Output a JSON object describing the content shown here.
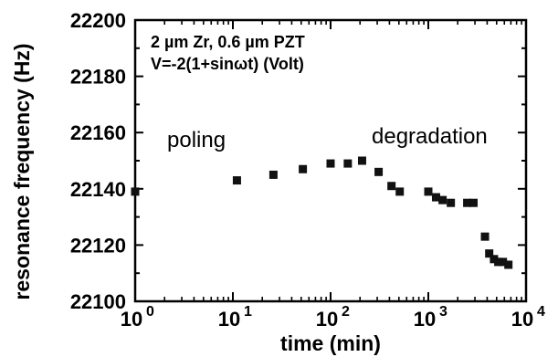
{
  "chart_data": {
    "type": "scatter",
    "xscale": "log",
    "xlim": [
      1,
      10000
    ],
    "ylim": [
      22100,
      22200
    ],
    "xlabel": "time (min)",
    "ylabel": "resonance frequency (Hz)",
    "x_ticks": [
      {
        "value": 1,
        "base": "10",
        "exp": "0"
      },
      {
        "value": 10,
        "base": "10",
        "exp": "1"
      },
      {
        "value": 100,
        "base": "10",
        "exp": "2"
      },
      {
        "value": 1000,
        "base": "10",
        "exp": "3"
      },
      {
        "value": 10000,
        "base": "10",
        "exp": "4"
      }
    ],
    "y_ticks": [
      22100,
      22120,
      22140,
      22160,
      22180,
      22200
    ],
    "annotations": {
      "sample": "2 µm Zr, 0.6 µm PZT",
      "voltage": "V=-2(1+sinωt) (Volt)",
      "left_region": "poling",
      "right_region": "degradation"
    },
    "marker_color": "#111111",
    "points": [
      {
        "x": 1,
        "y": 22139
      },
      {
        "x": 11,
        "y": 22143
      },
      {
        "x": 26,
        "y": 22145
      },
      {
        "x": 52,
        "y": 22147
      },
      {
        "x": 100,
        "y": 22149
      },
      {
        "x": 150,
        "y": 22149
      },
      {
        "x": 210,
        "y": 22150
      },
      {
        "x": 310,
        "y": 22146
      },
      {
        "x": 420,
        "y": 22141
      },
      {
        "x": 510,
        "y": 22139
      },
      {
        "x": 1000,
        "y": 22139
      },
      {
        "x": 1200,
        "y": 22137
      },
      {
        "x": 1400,
        "y": 22136
      },
      {
        "x": 1700,
        "y": 22135
      },
      {
        "x": 2500,
        "y": 22135
      },
      {
        "x": 2900,
        "y": 22135
      },
      {
        "x": 3800,
        "y": 22123
      },
      {
        "x": 4200,
        "y": 22117
      },
      {
        "x": 4700,
        "y": 22115
      },
      {
        "x": 5200,
        "y": 22114
      },
      {
        "x": 5800,
        "y": 22114
      },
      {
        "x": 6600,
        "y": 22113
      }
    ]
  }
}
